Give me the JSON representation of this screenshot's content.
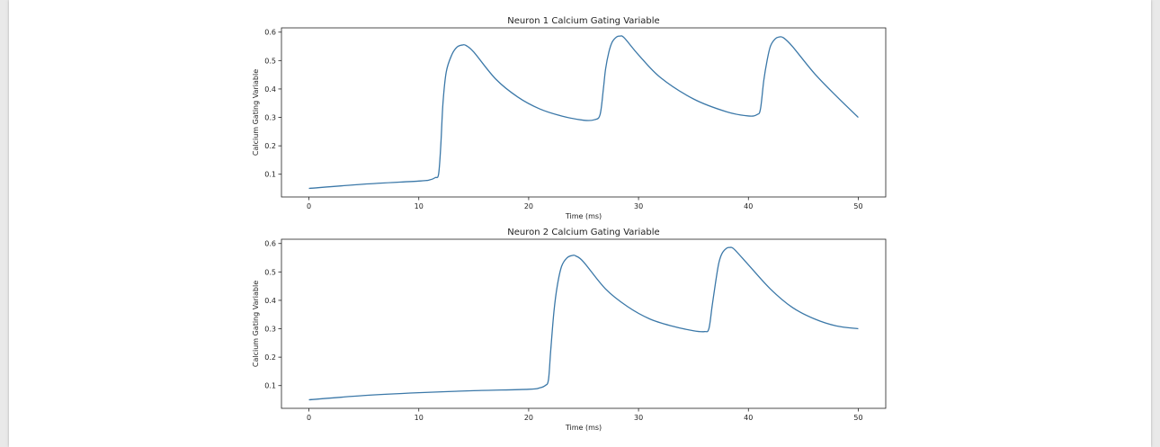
{
  "colors": {
    "line": "#3b78a8"
  },
  "chart_data": [
    {
      "type": "line",
      "title": "Neuron 1 Calcium Gating Variable",
      "xlabel": "Time (ms)",
      "ylabel": "Calcium Gating Variable",
      "xlim": [
        -2.5,
        52.5
      ],
      "ylim": [
        0.02,
        0.615
      ],
      "xticks": [
        0,
        10,
        20,
        30,
        40,
        50
      ],
      "yticks": [
        0.1,
        0.2,
        0.3,
        0.4,
        0.5,
        0.6
      ],
      "grid": false,
      "series": [
        {
          "x": [
            0,
            5,
            10,
            11,
            11.5,
            11.8,
            12,
            12.2,
            12.5,
            13,
            13.5,
            14,
            14.3,
            15,
            17,
            19,
            21,
            23,
            25,
            26,
            26.5,
            26.8,
            27,
            27.3,
            27.6,
            28,
            28.3,
            28.7,
            30,
            32,
            35,
            38,
            40,
            40.8,
            41.1,
            41.4,
            41.7,
            42,
            42.4,
            42.8,
            43.2,
            44,
            46,
            48,
            50
          ],
          "y": [
            0.05,
            0.065,
            0.076,
            0.08,
            0.088,
            0.1,
            0.2,
            0.35,
            0.46,
            0.52,
            0.548,
            0.555,
            0.553,
            0.53,
            0.435,
            0.372,
            0.33,
            0.305,
            0.29,
            0.292,
            0.31,
            0.4,
            0.47,
            0.53,
            0.565,
            0.583,
            0.586,
            0.58,
            0.52,
            0.44,
            0.365,
            0.32,
            0.305,
            0.31,
            0.33,
            0.43,
            0.5,
            0.55,
            0.575,
            0.583,
            0.58,
            0.55,
            0.455,
            0.375,
            0.3
          ]
        }
      ]
    },
    {
      "type": "line",
      "title": "Neuron 2 Calcium Gating Variable",
      "xlabel": "Time (ms)",
      "ylabel": "Calcium Gating Variable",
      "xlim": [
        -2.5,
        52.5
      ],
      "ylim": [
        0.02,
        0.615
      ],
      "xticks": [
        0,
        10,
        20,
        30,
        40,
        50
      ],
      "yticks": [
        0.1,
        0.2,
        0.3,
        0.4,
        0.5,
        0.6
      ],
      "grid": false,
      "series": [
        {
          "x": [
            0,
            5,
            10,
            15,
            20,
            21,
            21.5,
            21.8,
            22,
            22.3,
            22.6,
            23,
            23.5,
            24,
            24.3,
            25,
            27,
            29,
            31,
            33,
            35,
            36,
            36.4,
            36.7,
            37,
            37.3,
            37.6,
            38,
            38.3,
            38.7,
            40,
            42,
            44,
            46,
            48,
            50
          ],
          "y": [
            0.05,
            0.065,
            0.075,
            0.082,
            0.087,
            0.092,
            0.1,
            0.12,
            0.22,
            0.36,
            0.45,
            0.52,
            0.55,
            0.558,
            0.556,
            0.535,
            0.44,
            0.378,
            0.335,
            0.31,
            0.293,
            0.29,
            0.3,
            0.38,
            0.46,
            0.53,
            0.565,
            0.583,
            0.586,
            0.58,
            0.525,
            0.44,
            0.375,
            0.335,
            0.31,
            0.3
          ]
        }
      ]
    }
  ]
}
